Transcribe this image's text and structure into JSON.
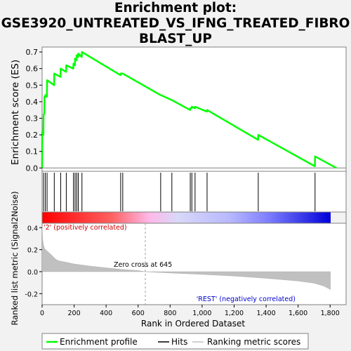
{
  "chart_data": {
    "type": "line",
    "title_lines": [
      "Enrichment plot:",
      "GSE3920_UNTREATED_VS_IFNG_TREATED_FIBRO",
      "BLAST_UP"
    ],
    "top_panel": {
      "ylabel": "Enrichment score (ES)",
      "ylim": [
        -0.02,
        0.73
      ],
      "y_ticks": [
        "0.0",
        "0.1",
        "0.2",
        "0.3",
        "0.4",
        "0.5",
        "0.6",
        "0.7"
      ],
      "y_tick_values": [
        0,
        0.1,
        0.2,
        0.3,
        0.4,
        0.5,
        0.6,
        0.7
      ],
      "series": [
        {
          "name": "Enrichment profile",
          "color": "#00ff00",
          "x": [
            0,
            1,
            8,
            9,
            14,
            15,
            19,
            20,
            30,
            31,
            75,
            76,
            115,
            116,
            150,
            151,
            195,
            196,
            205,
            206,
            215,
            216,
            225,
            226,
            248,
            249,
            490,
            491,
            503,
            504,
            740,
            741,
            810,
            811,
            925,
            926,
            935,
            936,
            955,
            956,
            1030,
            1031,
            1350,
            1351,
            1705,
            1706,
            1840
          ],
          "y": [
            0.0,
            0.22,
            0.2,
            0.32,
            0.33,
            0.43,
            0.43,
            0.44,
            0.43,
            0.53,
            0.5,
            0.57,
            0.55,
            0.6,
            0.58,
            0.62,
            0.6,
            0.63,
            0.62,
            0.66,
            0.65,
            0.68,
            0.67,
            0.69,
            0.67,
            0.7,
            0.56,
            0.57,
            0.57,
            0.57,
            0.44,
            0.44,
            0.41,
            0.41,
            0.35,
            0.36,
            0.36,
            0.37,
            0.36,
            0.37,
            0.34,
            0.35,
            0.17,
            0.2,
            0.01,
            0.07,
            0.0
          ]
        }
      ]
    },
    "hits": {
      "name": "Hits",
      "positions": [
        9,
        20,
        31,
        76,
        116,
        151,
        196,
        206,
        216,
        226,
        249,
        491,
        504,
        741,
        811,
        926,
        936,
        956,
        1031,
        1351,
        1706
      ]
    },
    "bottom_panel": {
      "ylabel": "Ranked list metric (Signal2Noise)",
      "xlabel": "Rank in Ordered Dataset",
      "series_name": "Ranking metric scores",
      "xlim": [
        0,
        1900
      ],
      "x_ticks": [
        "0",
        "200",
        "400",
        "600",
        "800",
        "1,000",
        "1,200",
        "1,400",
        "1,600",
        "1,800"
      ],
      "x_tick_values": [
        0,
        200,
        400,
        600,
        800,
        1000,
        1200,
        1400,
        1600,
        1800
      ],
      "ylim": [
        -0.3,
        0.44
      ],
      "y_ticks": [
        "0.4",
        "0.2",
        "0.0",
        "-0.2"
      ],
      "y_tick_values": [
        0.4,
        0.2,
        0,
        -0.2
      ],
      "metric_curve": {
        "x": [
          0,
          3,
          8,
          15,
          30,
          60,
          80,
          100,
          150,
          200,
          300,
          400,
          500,
          600,
          645,
          700,
          800,
          1000,
          1200,
          1400,
          1600,
          1700,
          1760,
          1800,
          1820,
          1830,
          1840
        ],
        "y": [
          0.42,
          0.3,
          0.25,
          0.21,
          0.19,
          0.15,
          0.12,
          0.1,
          0.085,
          0.07,
          0.05,
          0.035,
          0.02,
          0.01,
          0.0,
          -0.005,
          -0.012,
          -0.025,
          -0.04,
          -0.06,
          -0.085,
          -0.105,
          -0.13,
          -0.16,
          -0.19,
          -0.23,
          -0.28
        ]
      },
      "positive_label": "'2' (positively correlated)",
      "negative_label": "'REST' (negatively correlated)",
      "zero_cross_label": "Zero cross at 645",
      "zero_cross_x": 645
    },
    "color_bar_stops": [
      "#ff0000",
      "#ff6060",
      "#ffb8e8",
      "#d8d8f8",
      "#b8b8ff",
      "#8080ff",
      "#0000d8"
    ],
    "color_bar_positions": [
      0,
      0.24,
      0.37,
      0.47,
      0.65,
      0.78,
      1.0
    ],
    "legend": [
      {
        "label": "Enrichment profile",
        "color": "#00ff00"
      },
      {
        "label": "Hits",
        "color": "#000000"
      },
      {
        "label": "Ranking metric scores",
        "color": "#c0c0c0"
      }
    ]
  }
}
